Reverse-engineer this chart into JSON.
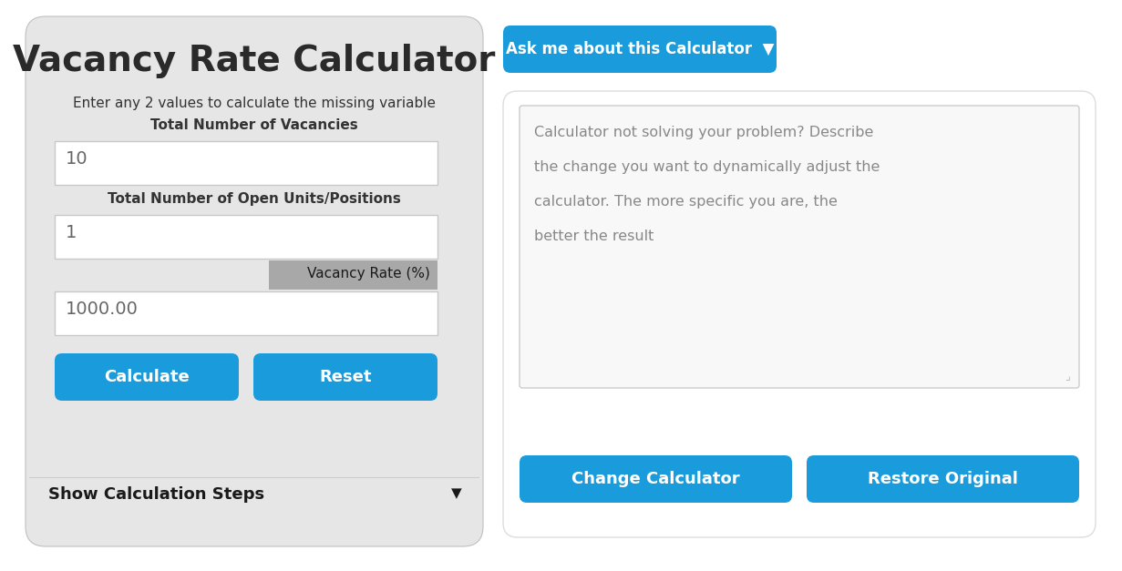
{
  "bg_color": "#ffffff",
  "left_panel_bg": "#e6e6e6",
  "title": "Vacancy Rate Calculator",
  "subtitle": "Enter any 2 values to calculate the missing variable",
  "label1": "Total Number of Vacancies",
  "field1_value": "10",
  "label2": "Total Number of Open Units/Positions",
  "field2_value": "1",
  "label3": "Vacancy Rate (%)",
  "field3_value": "1000.00",
  "btn_calculate": "Calculate",
  "btn_reset": "Reset",
  "show_steps": "Show Calculation Steps",
  "btn_color": "#1a9bdb",
  "btn_text_color": "#ffffff",
  "field_bg": "#ffffff",
  "field_border": "#c8c8c8",
  "label3_bg": "#a8a8a8",
  "ask_btn_text": "Ask me about this Calculator  ▼",
  "textarea_text": "Calculator not solving your problem? Describe\nthe change you want to dynamically adjust the\ncalculator. The more specific you are, the\nbetter the result",
  "textarea_text_color": "#888888",
  "btn_change": "Change Calculator",
  "btn_restore": "Restore Original",
  "title_color": "#2a2a2a",
  "label_color": "#333333",
  "field_value_color": "#666666",
  "show_steps_color": "#1a1a1a",
  "right_panel_bg": "#f0f0f0",
  "right_panel_border": "#cccccc",
  "textarea_bg": "#f8f8f8",
  "title_fontsize": 28,
  "subtitle_fontsize": 11,
  "label_fontsize": 11,
  "field_fontsize": 14,
  "btn_fontsize": 13,
  "show_steps_fontsize": 13,
  "ask_btn_fontsize": 12,
  "textarea_fontsize": 11.5
}
